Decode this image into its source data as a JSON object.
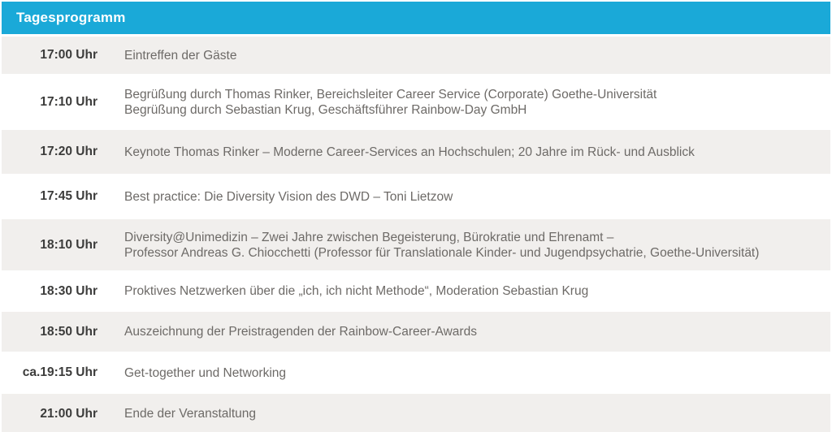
{
  "header": {
    "title": "Tagesprogramm",
    "background_color": "#1AA9D8",
    "text_color": "#FFFFFF"
  },
  "colors": {
    "row_alt_background": "#F1EFED",
    "time_text": "#3C3C3B",
    "description_text": "#6D6A67"
  },
  "rows": [
    {
      "time": "17:00 Uhr",
      "description": "Eintreffen der Gäste"
    },
    {
      "time": "17:10 Uhr",
      "description": "Begrüßung durch Thomas Rinker, Bereichsleiter Career Service (Corporate) Goethe-Universität\nBegrüßung durch Sebastian Krug, Geschäftsführer Rainbow-Day GmbH"
    },
    {
      "time": "17:20 Uhr",
      "description": "Keynote Thomas Rinker – Moderne Career-Services an Hochschulen; 20 Jahre im Rück- und Ausblick"
    },
    {
      "time": "17:45 Uhr",
      "description": "Best practice: Die Diversity Vision des DWD – Toni Lietzow"
    },
    {
      "time": "18:10 Uhr",
      "description": "Diversity@Unimedizin – Zwei Jahre zwischen Begeisterung, Bürokratie und Ehrenamt –\nProfessor Andreas G. Chiocchetti (Professor für Translationale Kinder- und Jugendpsychatrie, Goethe-Universität)"
    },
    {
      "time": "18:30 Uhr",
      "description": "Proktives Netzwerken über die „ich, ich nicht Methode“, Moderation Sebastian Krug"
    },
    {
      "time": "18:50 Uhr",
      "description": "Auszeichnung der Preistragenden der Rainbow-Career-Awards"
    },
    {
      "time": "ca.19:15 Uhr",
      "description": "Get-together und Networking"
    },
    {
      "time": "21:00 Uhr",
      "description": "Ende der Veranstaltung"
    }
  ]
}
